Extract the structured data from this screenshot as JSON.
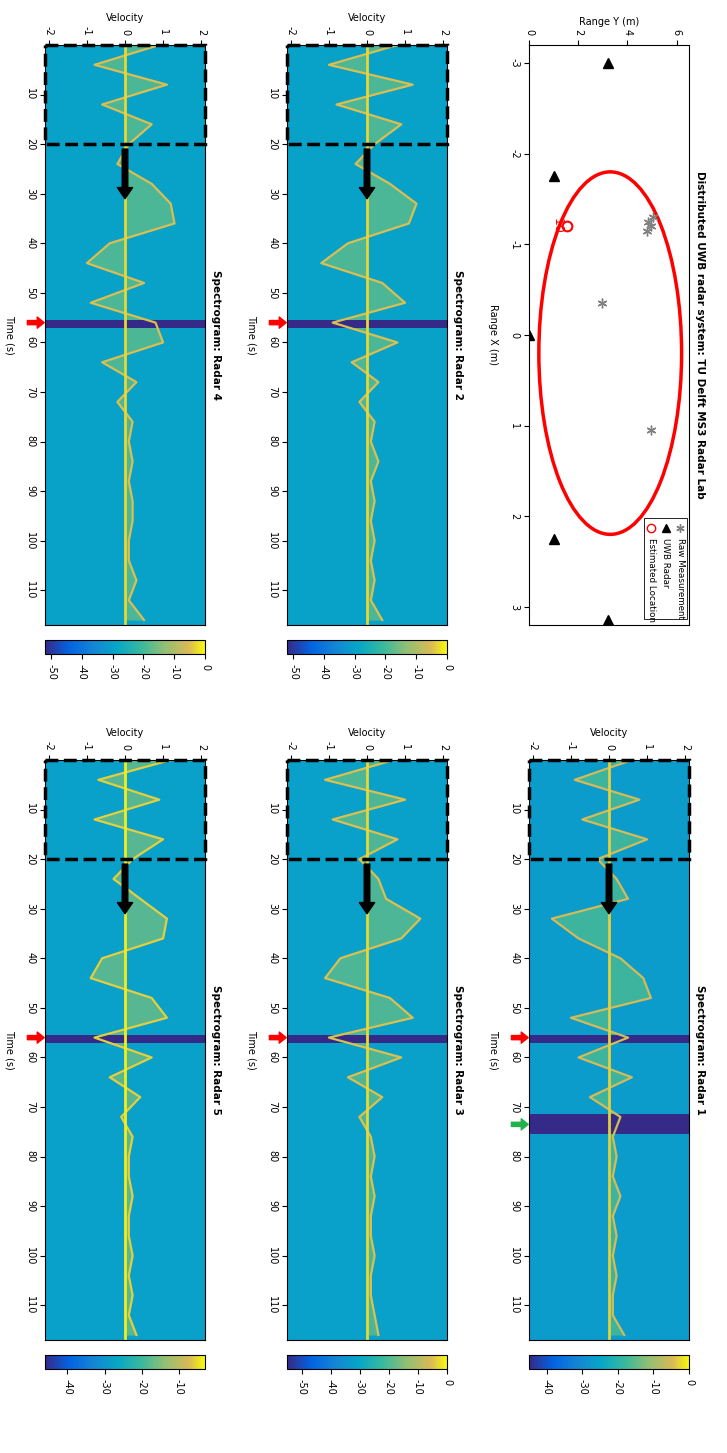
{
  "chart_data": [
    {
      "type": "scatter",
      "title": "Distributed UWB radar system: TU Delft MS3 Radar Lab",
      "xlabel": "Range X (m)",
      "ylabel": "Range Y (m)",
      "xlim": [
        -3.2,
        3.2
      ],
      "xticks": [
        -3,
        -2,
        -1,
        0,
        1,
        2,
        3
      ],
      "ylim": [
        0,
        6.5
      ],
      "yticks": [
        0,
        2,
        4,
        6
      ],
      "legend": "upper right",
      "series": [
        {
          "name": "Raw Measurement",
          "color": "#808080",
          "marker": "asterisk",
          "x": [
            -1.2,
            -1.15,
            -1.3,
            -1.25,
            -0.35,
            1.05
          ],
          "y": [
            4.95,
            4.8,
            5.05,
            4.85,
            2.95,
            4.95
          ]
        },
        {
          "name": "UWB Radar",
          "color": "#000000",
          "marker": "triangle",
          "x": [
            -3.0,
            -1.75,
            0,
            2.25,
            3.15
          ],
          "y": [
            3.2,
            1.0,
            0,
            1.0,
            3.2
          ]
        },
        {
          "name": "Estimated Location",
          "color": "#ff0000",
          "marker": "circle",
          "x": [
            -1.2
          ],
          "y": [
            1.55
          ]
        }
      ],
      "ellipse": {
        "center": [
          0.2,
          3.3
        ],
        "size": [
          4.0,
          5.8
        ],
        "color": "#ff0000"
      },
      "annotations": [
        {
          "text": "10",
          "x": -1.2,
          "y": 1.15,
          "color": "#ff0000"
        }
      ]
    },
    {
      "type": "spectrogram",
      "title": "Spectrogram: Radar 1",
      "xlabel": "Time (s)",
      "ylabel": "Velocity",
      "xlim": [
        0,
        117
      ],
      "xticks": [
        10,
        20,
        30,
        40,
        50,
        60,
        70,
        80,
        90,
        100,
        110
      ],
      "ylim": [
        -2.1,
        2.1
      ],
      "yticks": [
        -2,
        -1,
        0,
        1,
        2
      ],
      "colorbar": {
        "range": [
          -45,
          0
        ],
        "ticks": [
          -40,
          -30,
          -20,
          -10,
          0
        ]
      },
      "levels": {
        "background": -27,
        "motion": -17,
        "trace": -5,
        "zero": -3,
        "dropout": -45
      },
      "x": [
        0,
        4,
        8,
        12,
        16,
        20,
        24,
        28,
        32,
        36,
        40,
        44,
        48,
        52,
        56,
        60,
        64,
        68,
        72,
        76,
        80,
        84,
        88,
        92,
        96,
        100,
        104,
        108,
        112,
        116
      ],
      "values": [
        0.6,
        -0.9,
        0.8,
        -0.7,
        1.0,
        -0.3,
        0.2,
        0.5,
        -1.5,
        -0.8,
        0.3,
        0.9,
        1.1,
        -1.0,
        0.5,
        -0.8,
        0.6,
        -0.5,
        0.3,
        0.1,
        0.2,
        0.1,
        0.3,
        0.1,
        0.2,
        0.1,
        0.2,
        0.1,
        0.1,
        0.4
      ],
      "dropouts": [
        [
          55.5,
          57
        ],
        [
          71.5,
          75.5
        ]
      ],
      "highlight": {
        "box": [
          0,
          20
        ],
        "arrow_from": 21,
        "arrow_to": 31,
        "arrow_velocity": 0
      },
      "arrows": [
        {
          "time": 56,
          "color": "#ff0000"
        },
        {
          "time": 73.5,
          "color": "#22b14c"
        }
      ]
    },
    {
      "type": "spectrogram",
      "title": "Spectrogram: Radar 2",
      "xlabel": "Time (s)",
      "ylabel": "Velocity",
      "xlim": [
        0,
        117
      ],
      "xticks": [
        10,
        20,
        30,
        40,
        50,
        60,
        70,
        80,
        90,
        100,
        110
      ],
      "ylim": [
        -2.1,
        2.1
      ],
      "yticks": [
        -2,
        -1,
        0,
        1,
        2
      ],
      "colorbar": {
        "range": [
          -52,
          0
        ],
        "ticks": [
          -50,
          -40,
          -30,
          -20,
          -10,
          0
        ]
      },
      "levels": {
        "background": -30,
        "motion": -18,
        "trace": -5,
        "zero": -3,
        "dropout": -52
      },
      "x": [
        0,
        4,
        8,
        12,
        16,
        20,
        24,
        28,
        32,
        36,
        40,
        44,
        48,
        52,
        56,
        60,
        64,
        68,
        72,
        76,
        80,
        84,
        88,
        92,
        96,
        100,
        104,
        108,
        112,
        116
      ],
      "values": [
        0.8,
        -1.0,
        1.2,
        -0.8,
        0.9,
        0.2,
        -0.3,
        0.6,
        1.3,
        1.1,
        -0.5,
        -1.2,
        0.4,
        1.0,
        -0.9,
        0.8,
        -0.4,
        0.3,
        -0.2,
        0.2,
        0.1,
        0.3,
        0.1,
        0.2,
        0.1,
        0.2,
        0.1,
        0.2,
        0.1,
        0.4
      ],
      "dropouts": [
        [
          55.5,
          57
        ]
      ],
      "highlight": {
        "box": [
          0,
          20
        ],
        "arrow_from": 21,
        "arrow_to": 31,
        "arrow_velocity": 0
      },
      "arrows": [
        {
          "time": 56,
          "color": "#ff0000"
        }
      ]
    },
    {
      "type": "spectrogram",
      "title": "Spectrogram: Radar 3",
      "xlabel": "Time (s)",
      "ylabel": "Velocity",
      "xlim": [
        0,
        117
      ],
      "xticks": [
        10,
        20,
        30,
        40,
        50,
        60,
        70,
        80,
        90,
        100,
        110
      ],
      "ylim": [
        -2.1,
        2.1
      ],
      "yticks": [
        -2,
        -1,
        0,
        1,
        2
      ],
      "colorbar": {
        "range": [
          -55,
          0
        ],
        "ticks": [
          -50,
          -40,
          -30,
          -20,
          -10,
          0
        ]
      },
      "levels": {
        "background": -32,
        "motion": -19,
        "trace": -5,
        "zero": -3,
        "dropout": -55
      },
      "x": [
        0,
        4,
        8,
        12,
        16,
        20,
        24,
        28,
        32,
        36,
        40,
        44,
        48,
        52,
        56,
        60,
        64,
        68,
        72,
        76,
        80,
        84,
        88,
        92,
        96,
        100,
        104,
        108,
        112,
        116
      ],
      "values": [
        0.7,
        -1.1,
        1.0,
        -0.9,
        0.8,
        -0.2,
        0.3,
        0.5,
        1.4,
        0.9,
        -0.7,
        -1.1,
        0.6,
        1.2,
        -1.0,
        0.9,
        -0.5,
        0.4,
        -0.2,
        0.1,
        0.2,
        0.1,
        0.2,
        0.1,
        0.1,
        0.2,
        0.1,
        0.1,
        0.2,
        0.3
      ],
      "dropouts": [
        [
          55.5,
          57
        ]
      ],
      "highlight": {
        "box": [
          0,
          20
        ],
        "arrow_from": 21,
        "arrow_to": 31,
        "arrow_velocity": 0
      },
      "arrows": [
        {
          "time": 56,
          "color": "#ff0000"
        }
      ]
    },
    {
      "type": "spectrogram",
      "title": "Spectrogram: Radar 4",
      "xlabel": "Time (s)",
      "ylabel": "Velocity",
      "xlim": [
        0,
        117
      ],
      "xticks": [
        10,
        20,
        30,
        40,
        50,
        60,
        70,
        80,
        90,
        100,
        110
      ],
      "ylim": [
        -2.1,
        2.1
      ],
      "yticks": [
        -2,
        -1,
        0,
        1,
        2
      ],
      "colorbar": {
        "range": [
          -52,
          0
        ],
        "ticks": [
          -50,
          -40,
          -30,
          -20,
          -10,
          0
        ]
      },
      "levels": {
        "background": -30,
        "motion": -18,
        "trace": -5,
        "zero": -3,
        "dropout": -52
      },
      "x": [
        0,
        4,
        8,
        12,
        16,
        20,
        24,
        28,
        32,
        36,
        40,
        44,
        48,
        52,
        56,
        60,
        64,
        68,
        72,
        76,
        80,
        84,
        88,
        92,
        96,
        100,
        104,
        108,
        112,
        116
      ],
      "values": [
        0.9,
        -0.8,
        1.1,
        -0.6,
        0.7,
        0.1,
        -0.2,
        0.7,
        1.2,
        1.3,
        -0.4,
        -1.0,
        0.5,
        -0.9,
        0.8,
        1.0,
        -0.6,
        0.3,
        -0.2,
        0.2,
        0.1,
        0.2,
        0.1,
        0.2,
        0.2,
        0.1,
        0.1,
        0.3,
        0.1,
        0.5
      ],
      "dropouts": [
        [
          55.5,
          57
        ]
      ],
      "highlight": {
        "box": [
          0,
          20
        ],
        "arrow_from": 21,
        "arrow_to": 31,
        "arrow_velocity": 0
      },
      "arrows": [
        {
          "time": 56,
          "color": "#ff0000"
        }
      ]
    },
    {
      "type": "spectrogram",
      "title": "Spectrogram: Radar 5",
      "xlabel": "Time (s)",
      "ylabel": "Velocity",
      "xlim": [
        0,
        117
      ],
      "xticks": [
        10,
        20,
        30,
        40,
        50,
        60,
        70,
        80,
        90,
        100,
        110
      ],
      "ylim": [
        -2.1,
        2.1
      ],
      "yticks": [
        -2,
        -1,
        0,
        1,
        2
      ],
      "colorbar": {
        "range": [
          -46,
          -3
        ],
        "ticks": [
          -40,
          -30,
          -20,
          -10
        ]
      },
      "levels": {
        "background": -28,
        "motion": -17,
        "trace": -6,
        "zero": -4,
        "dropout": -46
      },
      "x": [
        0,
        4,
        8,
        12,
        16,
        20,
        24,
        28,
        32,
        36,
        40,
        44,
        48,
        52,
        56,
        60,
        64,
        68,
        72,
        76,
        80,
        84,
        88,
        92,
        96,
        100,
        104,
        108,
        112,
        116
      ],
      "values": [
        1.2,
        -0.7,
        0.9,
        -0.8,
        1.0,
        0.2,
        -0.3,
        0.4,
        1.1,
        1.0,
        -0.6,
        -0.9,
        0.7,
        1.1,
        -0.8,
        0.7,
        -0.4,
        0.4,
        -0.1,
        0.2,
        0.1,
        0.1,
        0.2,
        0.1,
        0.1,
        0.2,
        0.1,
        0.2,
        0.1,
        0.3
      ],
      "dropouts": [
        [
          55.5,
          57
        ]
      ],
      "highlight": {
        "box": [
          0,
          20
        ],
        "arrow_from": 21,
        "arrow_to": 31,
        "arrow_velocity": 0
      },
      "arrows": [
        {
          "time": 56,
          "color": "#ff0000"
        }
      ]
    }
  ]
}
